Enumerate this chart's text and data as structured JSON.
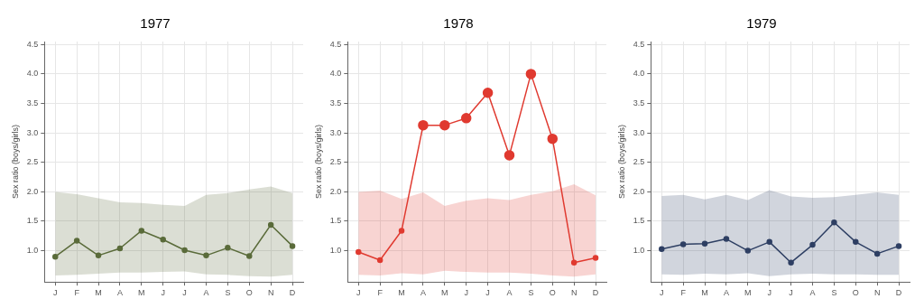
{
  "chart_data": [
    {
      "type": "line",
      "title": "1977",
      "ylabel": "Sex ratio (boys/girls)",
      "categories": [
        "J",
        "F",
        "M",
        "A",
        "M",
        "J",
        "J",
        "A",
        "S",
        "O",
        "N",
        "D"
      ],
      "ylim": [
        0.47,
        4.55
      ],
      "yticks": [
        {
          "value": 1,
          "label": "1.0"
        },
        {
          "value": 1.5,
          "label": "1.5"
        },
        {
          "value": 2,
          "label": "2.0"
        },
        {
          "value": 2.5,
          "label": "2.5"
        },
        {
          "value": 3,
          "label": "3.0"
        },
        {
          "value": 3.5,
          "label": "3.5"
        },
        {
          "value": 4,
          "label": "4.0"
        },
        {
          "value": 4.5,
          "label": "4.5"
        }
      ],
      "grid": true,
      "marker": "circle",
      "legend": false,
      "series": [
        {
          "color": "#5a6b3a",
          "values": [
            0.9,
            1.17,
            0.92,
            1.04,
            1.34,
            1.19,
            1.01,
            0.92,
            1.05,
            0.91,
            1.44,
            1.08
          ],
          "upper": [
            2.0,
            1.96,
            1.89,
            1.82,
            1.81,
            1.78,
            1.76,
            1.95,
            1.98,
            2.04,
            2.09,
            1.98
          ],
          "lower": [
            0.58,
            0.59,
            0.61,
            0.63,
            0.63,
            0.64,
            0.65,
            0.6,
            0.59,
            0.57,
            0.56,
            0.59
          ]
        }
      ]
    },
    {
      "type": "line",
      "title": "1978",
      "ylabel": "Sex ratio (boys/girls)",
      "categories": [
        "J",
        "F",
        "M",
        "A",
        "M",
        "J",
        "J",
        "A",
        "S",
        "O",
        "N",
        "D"
      ],
      "ylim": [
        0.47,
        4.55
      ],
      "yticks": [
        {
          "value": 1,
          "label": "1.0"
        },
        {
          "value": 1.5,
          "label": "1.5"
        },
        {
          "value": 2,
          "label": "2.0"
        },
        {
          "value": 2.5,
          "label": "2.5"
        },
        {
          "value": 3,
          "label": "3.0"
        },
        {
          "value": 3.5,
          "label": "3.5"
        },
        {
          "value": 4,
          "label": "4.0"
        },
        {
          "value": 4.5,
          "label": "4.5"
        }
      ],
      "grid": true,
      "marker": "circle",
      "legend": false,
      "series": [
        {
          "color": "#e03a30",
          "values": [
            0.98,
            0.84,
            1.34,
            3.13,
            3.13,
            3.25,
            3.68,
            2.62,
            4.0,
            2.9,
            0.8,
            0.88
          ],
          "upper": [
            2.0,
            2.02,
            1.88,
            1.99,
            1.76,
            1.85,
            1.89,
            1.86,
            1.95,
            2.01,
            2.13,
            1.94
          ],
          "lower": [
            0.59,
            0.58,
            0.62,
            0.6,
            0.66,
            0.64,
            0.63,
            0.63,
            0.61,
            0.58,
            0.56,
            0.6
          ]
        }
      ]
    },
    {
      "type": "line",
      "title": "1979",
      "ylabel": "Sex ratio (boys/girls)",
      "categories": [
        "J",
        "F",
        "M",
        "A",
        "M",
        "J",
        "J",
        "A",
        "S",
        "O",
        "N",
        "D"
      ],
      "ylim": [
        0.47,
        4.55
      ],
      "yticks": [
        {
          "value": 1,
          "label": "1.0"
        },
        {
          "value": 1.5,
          "label": "1.5"
        },
        {
          "value": 2,
          "label": "2.0"
        },
        {
          "value": 2.5,
          "label": "2.5"
        },
        {
          "value": 3,
          "label": "3.0"
        },
        {
          "value": 3.5,
          "label": "3.5"
        },
        {
          "value": 4,
          "label": "4.0"
        },
        {
          "value": 4.5,
          "label": "4.5"
        }
      ],
      "grid": true,
      "marker": "circle",
      "legend": false,
      "series": [
        {
          "color": "#2e3f63",
          "values": [
            1.03,
            1.11,
            1.12,
            1.2,
            1.0,
            1.15,
            0.8,
            1.1,
            1.48,
            1.15,
            0.95,
            1.08
          ],
          "upper": [
            1.93,
            1.95,
            1.87,
            1.95,
            1.86,
            2.03,
            1.92,
            1.9,
            1.91,
            1.95,
            1.99,
            1.95
          ],
          "lower": [
            0.6,
            0.59,
            0.61,
            0.6,
            0.62,
            0.57,
            0.6,
            0.61,
            0.6,
            0.6,
            0.59,
            0.59
          ]
        }
      ]
    }
  ]
}
